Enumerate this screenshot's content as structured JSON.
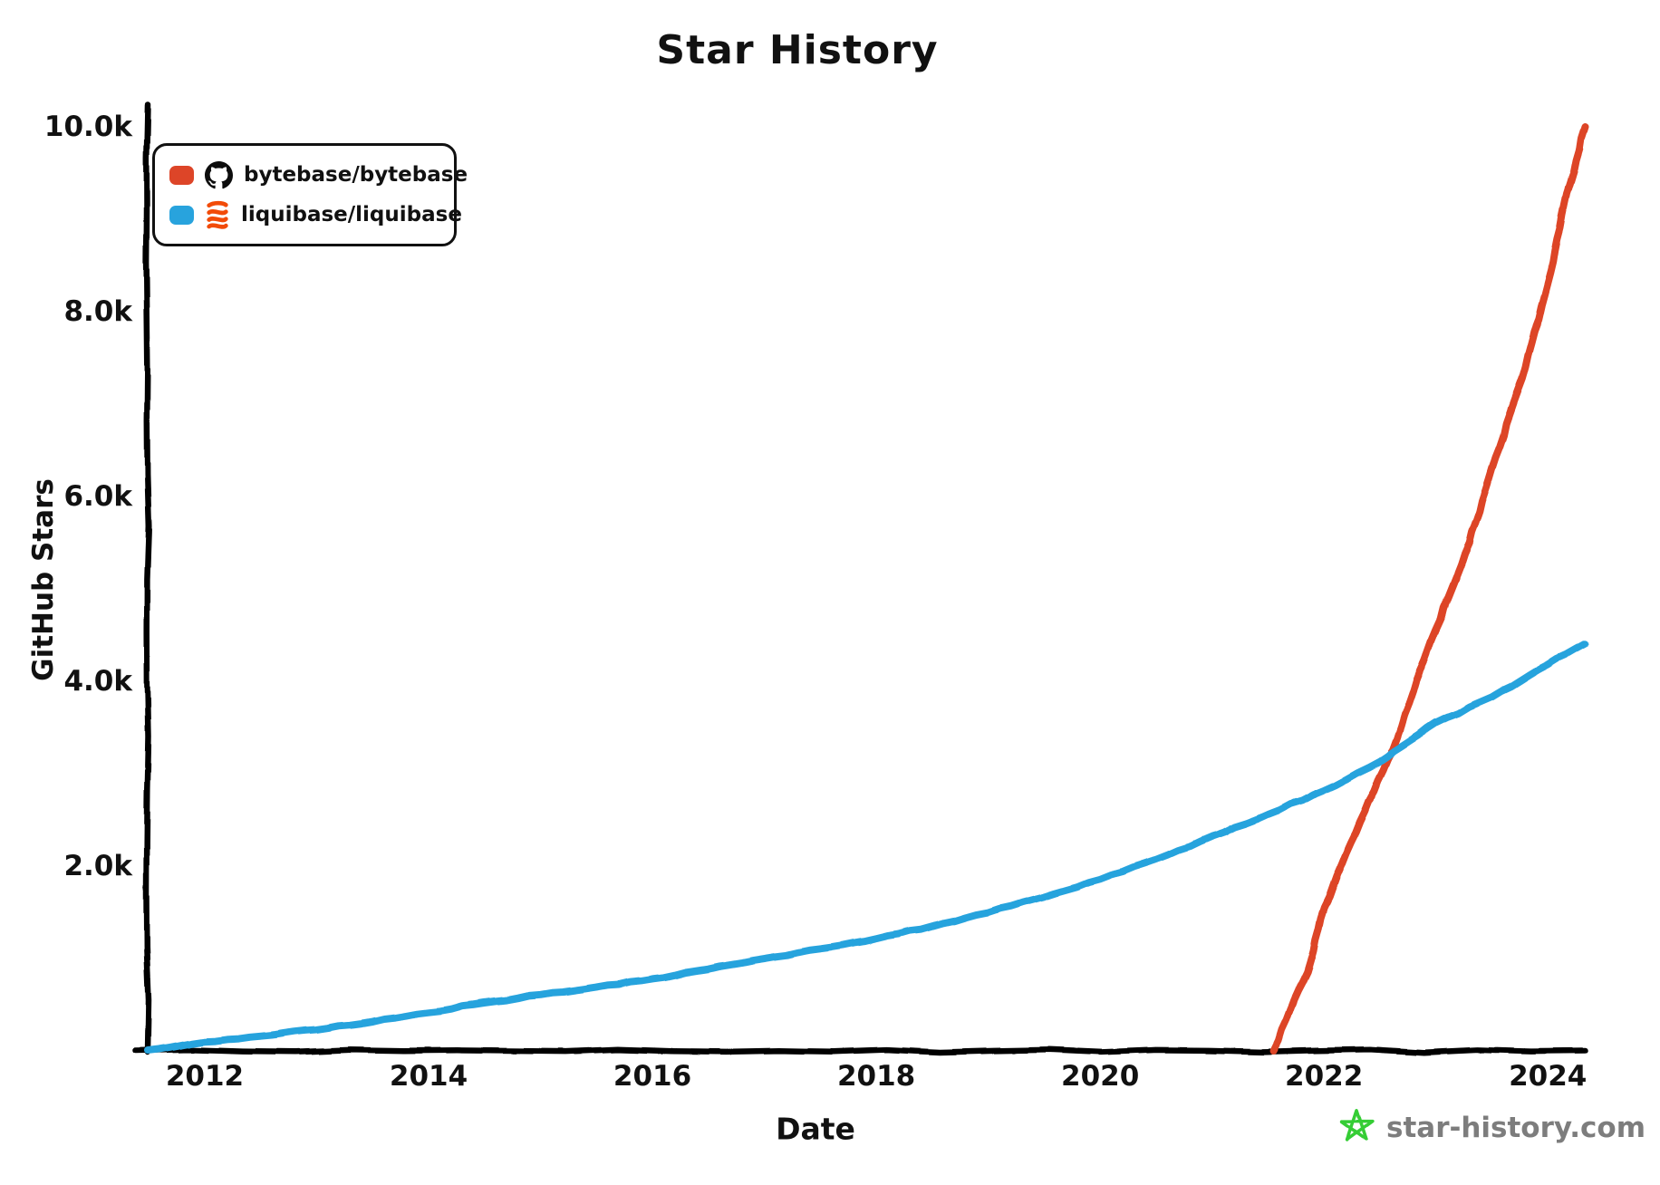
{
  "title": "Star History",
  "legend": {
    "items": [
      {
        "label": "bytebase/bytebase",
        "icon": "github-octocat-icon",
        "color": "#dd4528"
      },
      {
        "label": "liquibase/liquibase",
        "icon": "liquibase-icon",
        "color": "#28a3dd"
      }
    ]
  },
  "watermark": {
    "site": "star-history.com"
  },
  "colors": {
    "bytebase_line": "#dd4528",
    "liquibase_line": "#28a3dd",
    "axis": "#000000",
    "legend_border": "#111111",
    "octocat": "#0d0d0d",
    "liquibase_logo_orange": "#f24b08",
    "logo_green": "#35cd35",
    "watermark_text": "#7d7d7d",
    "background": "#ffffff"
  },
  "chart_data": {
    "type": "line",
    "title": "Star History",
    "xlabel": "Date",
    "ylabel": "GitHub Stars",
    "xlim": [
      2011.49,
      2024.33
    ],
    "ylim": [
      0,
      10000
    ],
    "grid": false,
    "legend_position": "top-left",
    "x_ticks": [
      {
        "value": 2012,
        "label": "2012"
      },
      {
        "value": 2014,
        "label": "2014"
      },
      {
        "value": 2016,
        "label": "2016"
      },
      {
        "value": 2018,
        "label": "2018"
      },
      {
        "value": 2020,
        "label": "2020"
      },
      {
        "value": 2022,
        "label": "2022"
      },
      {
        "value": 2024,
        "label": "2024"
      }
    ],
    "y_ticks": [
      {
        "value": 2000,
        "label": "2.0k"
      },
      {
        "value": 4000,
        "label": "4.0k"
      },
      {
        "value": 6000,
        "label": "6.0k"
      },
      {
        "value": 8000,
        "label": "8.0k"
      },
      {
        "value": 10000,
        "label": "10.0k"
      }
    ],
    "series": [
      {
        "name": "bytebase/bytebase",
        "color": "#dd4528",
        "points": [
          [
            2021.55,
            0
          ],
          [
            2021.7,
            450
          ],
          [
            2021.85,
            850
          ],
          [
            2022.0,
            1550
          ],
          [
            2022.2,
            2150
          ],
          [
            2022.4,
            2700
          ],
          [
            2022.62,
            3270
          ],
          [
            2022.8,
            3900
          ],
          [
            2023.0,
            4550
          ],
          [
            2023.3,
            5500
          ],
          [
            2023.5,
            6300
          ],
          [
            2023.8,
            7400
          ],
          [
            2024.0,
            8300
          ],
          [
            2024.15,
            9150
          ],
          [
            2024.33,
            10000
          ]
        ]
      },
      {
        "name": "liquibase/liquibase",
        "color": "#28a3dd",
        "points": [
          [
            2011.49,
            0
          ],
          [
            2012,
            100
          ],
          [
            2012.5,
            160
          ],
          [
            2013,
            230
          ],
          [
            2013.5,
            320
          ],
          [
            2014,
            420
          ],
          [
            2014.5,
            520
          ],
          [
            2015,
            610
          ],
          [
            2015.5,
            690
          ],
          [
            2016,
            780
          ],
          [
            2016.5,
            890
          ],
          [
            2017,
            1000
          ],
          [
            2017.5,
            1105
          ],
          [
            2018,
            1215
          ],
          [
            2018.5,
            1345
          ],
          [
            2019,
            1500
          ],
          [
            2019.5,
            1670
          ],
          [
            2020,
            1860
          ],
          [
            2020.4,
            2030
          ],
          [
            2020.8,
            2210
          ],
          [
            2021,
            2320
          ],
          [
            2021.5,
            2560
          ],
          [
            2022,
            2820
          ],
          [
            2022.5,
            3130
          ],
          [
            2022.7,
            3300
          ],
          [
            2023,
            3550
          ],
          [
            2023.5,
            3830
          ],
          [
            2024,
            4180
          ],
          [
            2024.33,
            4400
          ]
        ]
      }
    ]
  }
}
